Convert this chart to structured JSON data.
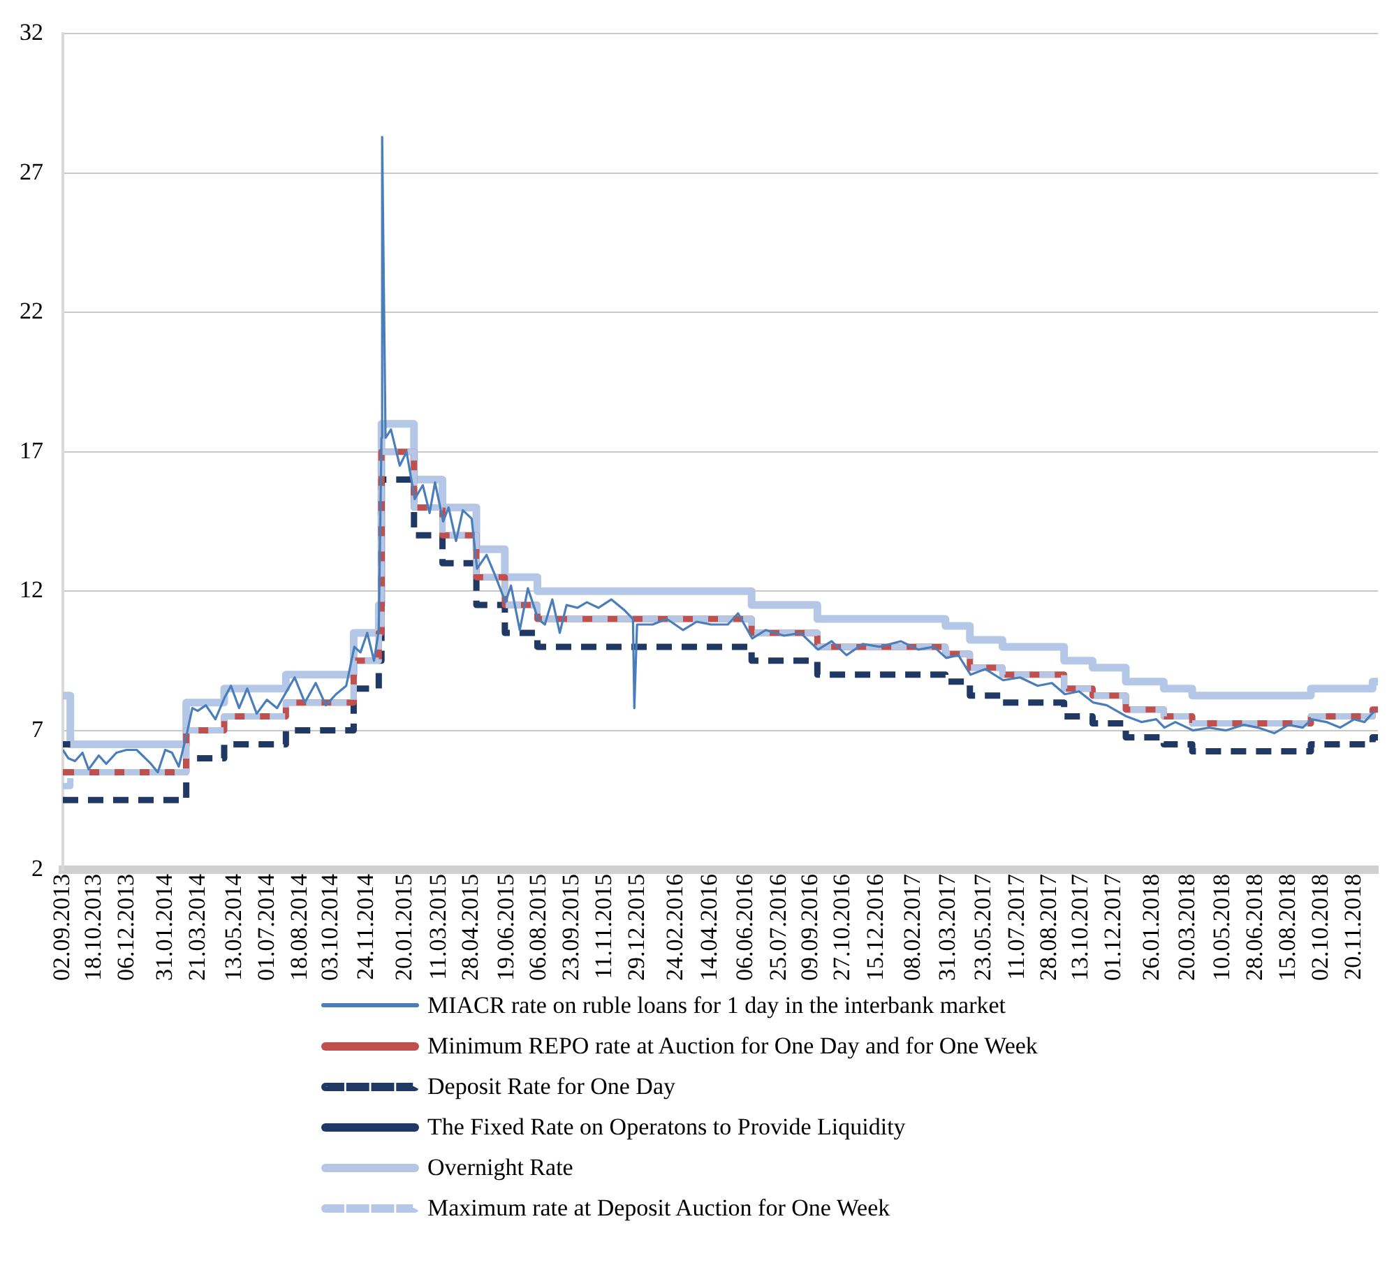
{
  "chart_data": {
    "type": "line",
    "xlim": [
      "2013-09-02",
      "2018-12-25"
    ],
    "xticks": [
      {
        "value": "2013-09-02",
        "label": "02.09.2013"
      },
      {
        "value": "2013-10-18",
        "label": "18.10.2013"
      },
      {
        "value": "2013-12-06",
        "label": "06.12.2013"
      },
      {
        "value": "2014-01-31",
        "label": "31.01.2014"
      },
      {
        "value": "2014-03-21",
        "label": "21.03.2014"
      },
      {
        "value": "2014-05-13",
        "label": "13.05.2014"
      },
      {
        "value": "2014-07-01",
        "label": "01.07.2014"
      },
      {
        "value": "2014-08-18",
        "label": "18.08.2014"
      },
      {
        "value": "2014-10-03",
        "label": "03.10.2014"
      },
      {
        "value": "2014-11-24",
        "label": "24.11.2014"
      },
      {
        "value": "2015-01-20",
        "label": "20.01.2015"
      },
      {
        "value": "2015-03-11",
        "label": "11.03.2015"
      },
      {
        "value": "2015-04-28",
        "label": "28.04.2015"
      },
      {
        "value": "2015-06-19",
        "label": "19.06.2015"
      },
      {
        "value": "2015-08-06",
        "label": "06.08.2015"
      },
      {
        "value": "2015-09-23",
        "label": "23.09.2015"
      },
      {
        "value": "2015-11-11",
        "label": "11.11.2015"
      },
      {
        "value": "2015-12-29",
        "label": "29.12.2015"
      },
      {
        "value": "2016-02-24",
        "label": "24.02.2016"
      },
      {
        "value": "2016-04-14",
        "label": "14.04.2016"
      },
      {
        "value": "2016-06-06",
        "label": "06.06.2016"
      },
      {
        "value": "2016-07-25",
        "label": "25.07.2016"
      },
      {
        "value": "2016-09-09",
        "label": "09.09.2016"
      },
      {
        "value": "2016-10-27",
        "label": "27.10.2016"
      },
      {
        "value": "2016-12-15",
        "label": "15.12.2016"
      },
      {
        "value": "2017-02-08",
        "label": "08.02.2017"
      },
      {
        "value": "2017-03-31",
        "label": "31.03.2017"
      },
      {
        "value": "2017-05-23",
        "label": "23.05.2017"
      },
      {
        "value": "2017-07-11",
        "label": "11.07.2017"
      },
      {
        "value": "2017-08-28",
        "label": "28.08.2017"
      },
      {
        "value": "2017-10-13",
        "label": "13.10.2017"
      },
      {
        "value": "2017-12-01",
        "label": "01.12.2017"
      },
      {
        "value": "2018-01-26",
        "label": "26.01.2018"
      },
      {
        "value": "2018-03-20",
        "label": "20.03.2018"
      },
      {
        "value": "2018-05-10",
        "label": "10.05.2018"
      },
      {
        "value": "2018-06-28",
        "label": "28.06.2018"
      },
      {
        "value": "2018-08-15",
        "label": "15.08.2018"
      },
      {
        "value": "2018-10-02",
        "label": "02.10.2018"
      },
      {
        "value": "2018-11-20",
        "label": "20.11.2018"
      }
    ],
    "ylim": [
      2,
      32
    ],
    "yticks": [
      2,
      7,
      12,
      17,
      22,
      27,
      32
    ],
    "grid": "y",
    "legend": "bottom",
    "marker": "none",
    "series": [
      {
        "name": "MIACR rate on ruble loans for 1 day in the interbank market",
        "type": "line",
        "color": "#4a7ebb",
        "line_style": "solid",
        "x": [
          "2013-09-02",
          "2013-09-10",
          "2013-09-20",
          "2013-10-01",
          "2013-10-10",
          "2013-10-25",
          "2013-11-05",
          "2013-11-20",
          "2013-12-05",
          "2013-12-20",
          "2014-01-10",
          "2014-01-20",
          "2014-01-31",
          "2014-02-10",
          "2014-02-20",
          "2014-03-04",
          "2014-03-12",
          "2014-03-20",
          "2014-04-01",
          "2014-04-15",
          "2014-04-29",
          "2014-05-08",
          "2014-05-20",
          "2014-06-01",
          "2014-06-15",
          "2014-06-30",
          "2014-07-15",
          "2014-07-29",
          "2014-08-10",
          "2014-08-25",
          "2014-09-10",
          "2014-09-25",
          "2014-10-10",
          "2014-10-25",
          "2014-11-06",
          "2014-11-15",
          "2014-11-25",
          "2014-12-05",
          "2014-12-12",
          "2014-12-16",
          "2014-12-17",
          "2014-12-22",
          "2014-12-30",
          "2015-01-12",
          "2015-01-22",
          "2015-02-03",
          "2015-02-15",
          "2015-02-25",
          "2015-03-05",
          "2015-03-17",
          "2015-03-25",
          "2015-04-05",
          "2015-04-15",
          "2015-04-28",
          "2015-05-06",
          "2015-05-20",
          "2015-06-01",
          "2015-06-17",
          "2015-06-25",
          "2015-07-08",
          "2015-07-20",
          "2015-08-04",
          "2015-08-14",
          "2015-08-25",
          "2015-09-05",
          "2015-09-15",
          "2015-10-01",
          "2015-10-15",
          "2015-11-01",
          "2015-11-20",
          "2015-12-10",
          "2015-12-22",
          "2015-12-24",
          "2015-12-28",
          "2016-01-20",
          "2016-02-10",
          "2016-03-05",
          "2016-03-25",
          "2016-04-15",
          "2016-05-10",
          "2016-05-25",
          "2016-06-15",
          "2016-07-05",
          "2016-08-01",
          "2016-08-25",
          "2016-09-20",
          "2016-10-10",
          "2016-11-01",
          "2016-11-25",
          "2016-12-20",
          "2017-01-20",
          "2017-02-15",
          "2017-03-10",
          "2017-03-28",
          "2017-04-15",
          "2017-05-03",
          "2017-05-25",
          "2017-06-20",
          "2017-07-15",
          "2017-08-10",
          "2017-08-31",
          "2017-09-19",
          "2017-10-10",
          "2017-10-31",
          "2017-11-20",
          "2017-12-19",
          "2018-01-10",
          "2018-02-01",
          "2018-02-13",
          "2018-03-01",
          "2018-03-27",
          "2018-04-20",
          "2018-05-15",
          "2018-06-10",
          "2018-07-01",
          "2018-07-25",
          "2018-08-15",
          "2018-09-05",
          "2018-09-18",
          "2018-10-10",
          "2018-10-30",
          "2018-11-20",
          "2018-12-05",
          "2018-12-20"
        ],
        "values": [
          6.3,
          6.0,
          5.9,
          6.2,
          5.6,
          6.1,
          5.8,
          6.2,
          6.3,
          6.3,
          5.8,
          5.5,
          6.3,
          6.2,
          5.7,
          6.9,
          7.8,
          7.7,
          7.9,
          7.4,
          8.2,
          8.6,
          7.8,
          8.5,
          7.6,
          8.1,
          7.8,
          8.4,
          8.9,
          8.0,
          8.7,
          7.9,
          8.3,
          8.6,
          10.0,
          9.8,
          10.5,
          9.5,
          10.6,
          17.5,
          28.3,
          17.5,
          17.8,
          16.5,
          17.0,
          15.3,
          15.8,
          14.8,
          15.9,
          14.5,
          15.0,
          13.8,
          14.9,
          14.6,
          12.8,
          13.3,
          12.6,
          11.6,
          12.2,
          10.6,
          12.1,
          11.0,
          10.8,
          11.7,
          10.5,
          11.5,
          11.4,
          11.6,
          11.4,
          11.7,
          11.3,
          11.0,
          7.8,
          10.8,
          10.8,
          11.0,
          10.6,
          10.9,
          10.8,
          10.8,
          11.2,
          10.3,
          10.6,
          10.4,
          10.5,
          9.9,
          10.2,
          9.7,
          10.1,
          10.0,
          10.2,
          9.9,
          10.0,
          9.6,
          9.7,
          9.0,
          9.2,
          8.8,
          8.9,
          8.6,
          8.7,
          8.3,
          8.4,
          8.0,
          7.9,
          7.5,
          7.3,
          7.4,
          7.1,
          7.3,
          7.0,
          7.1,
          7.0,
          7.2,
          7.1,
          6.9,
          7.2,
          7.1,
          7.4,
          7.3,
          7.1,
          7.4,
          7.3,
          7.7
        ]
      },
      {
        "name": "Minimum REPO rate at Auction for One Day and for One Week",
        "type": "step",
        "color": "#c0504d",
        "line_style": "solid",
        "x": [
          "2013-09-02",
          "2014-03-03",
          "2014-04-28",
          "2014-07-28",
          "2014-11-05",
          "2014-12-12",
          "2014-12-16",
          "2015-02-02",
          "2015-03-16",
          "2015-05-05",
          "2015-06-16",
          "2015-08-03",
          "2016-06-14",
          "2016-09-19",
          "2017-03-27",
          "2017-05-02",
          "2017-06-19",
          "2017-09-18",
          "2017-10-30",
          "2017-12-18",
          "2018-02-12",
          "2018-03-26",
          "2018-09-17",
          "2018-12-17",
          "2018-12-25"
        ],
        "values": [
          5.5,
          7,
          7.5,
          8,
          9.5,
          10.5,
          17,
          15,
          14,
          12.5,
          11.5,
          11,
          10.5,
          10,
          9.75,
          9.25,
          9,
          8.5,
          8.25,
          7.75,
          7.5,
          7.25,
          7.5,
          7.75,
          7.75
        ]
      },
      {
        "name": "Deposit Rate for One Day",
        "type": "step",
        "color": "#1f3864",
        "line_style": "dashed",
        "x": [
          "2013-09-02",
          "2014-03-03",
          "2014-04-28",
          "2014-07-28",
          "2014-11-05",
          "2014-12-12",
          "2014-12-16",
          "2015-02-02",
          "2015-03-16",
          "2015-05-05",
          "2015-06-16",
          "2015-08-03",
          "2016-06-14",
          "2016-09-19",
          "2017-03-27",
          "2017-05-02",
          "2017-06-19",
          "2017-09-18",
          "2017-10-30",
          "2017-12-18",
          "2018-02-12",
          "2018-03-26",
          "2018-09-17",
          "2018-12-17",
          "2018-12-25"
        ],
        "values": [
          4.5,
          6,
          6.5,
          7,
          8.5,
          9.5,
          16,
          14,
          13,
          11.5,
          10.5,
          10,
          9.5,
          9,
          8.75,
          8.25,
          8,
          7.5,
          7.25,
          6.75,
          6.5,
          6.25,
          6.5,
          6.75,
          6.75
        ]
      },
      {
        "name": "The Fixed Rate on Operatons to Provide Liquidity",
        "type": "step",
        "color": "#1f3864",
        "line_style": "solid",
        "x": [
          "2013-09-02",
          "2013-09-13"
        ],
        "values": [
          6.5,
          6.5
        ]
      },
      {
        "name": "Overnight Rate",
        "type": "step",
        "color": "#b4c7e7",
        "line_style": "solid",
        "x": [
          "2013-09-02",
          "2013-09-13",
          "2014-03-03",
          "2014-04-28",
          "2014-07-28",
          "2014-11-05",
          "2014-12-12",
          "2014-12-16",
          "2015-02-02",
          "2015-03-16",
          "2015-05-05",
          "2015-06-16",
          "2015-08-03",
          "2016-06-14",
          "2016-09-19",
          "2017-03-27",
          "2017-05-02",
          "2017-06-19",
          "2017-09-18",
          "2017-10-30",
          "2017-12-18",
          "2018-02-12",
          "2018-03-26",
          "2018-09-17",
          "2018-12-17",
          "2018-12-25"
        ],
        "values": [
          8.25,
          6.5,
          8,
          8.5,
          9,
          10.5,
          11.5,
          18,
          16,
          15,
          13.5,
          12.5,
          12,
          11.5,
          11,
          10.75,
          10.25,
          10,
          9.5,
          9.25,
          8.75,
          8.5,
          8.25,
          8.5,
          8.75,
          8.75
        ]
      },
      {
        "name": "Maximum rate at Deposit Auction for One Week",
        "type": "step",
        "color": "#b4c7e7",
        "line_style": "dashed",
        "x": [
          "2013-09-02",
          "2013-09-13",
          "2014-03-03",
          "2014-04-28",
          "2014-07-28",
          "2014-11-05",
          "2014-12-12",
          "2014-12-16",
          "2015-02-02",
          "2015-03-16",
          "2015-05-05",
          "2015-06-16",
          "2015-08-03",
          "2016-06-14",
          "2016-09-19",
          "2017-03-27",
          "2017-05-02",
          "2017-06-19",
          "2017-09-18",
          "2017-10-30",
          "2017-12-18",
          "2018-02-12",
          "2018-03-26",
          "2018-09-17",
          "2018-12-17",
          "2018-12-25"
        ],
        "values": [
          5,
          5.5,
          7,
          7.5,
          8,
          9.5,
          10.5,
          17,
          15,
          14,
          12.5,
          11.5,
          11,
          10.5,
          10,
          9.75,
          9.25,
          9,
          8.5,
          8.25,
          7.75,
          7.5,
          7.25,
          7.5,
          7.75,
          7.75
        ]
      }
    ]
  }
}
